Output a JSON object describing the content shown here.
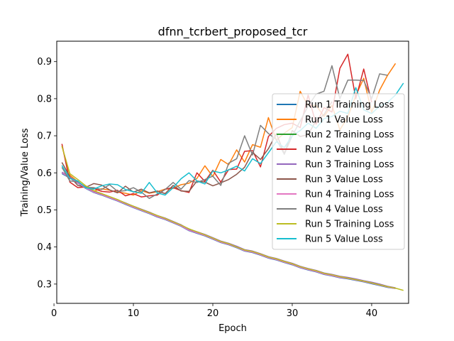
{
  "chart_data": {
    "type": "line",
    "title": "dfnn_tcrbert_proposed_tcr",
    "xlabel": "Epoch",
    "ylabel": "Training/Value Loss",
    "xlim": [
      0.35,
      44.65
    ],
    "ylim": [
      0.248,
      0.955
    ],
    "xticks": [
      0,
      10,
      20,
      30,
      40
    ],
    "yticks": [
      0.3,
      0.4,
      0.5,
      0.6,
      0.7,
      0.8,
      0.9
    ],
    "grid": false,
    "legend": "center-right",
    "series": [
      {
        "name": "Run 1 Training Loss",
        "color": "#1f77b4",
        "x": [
          1,
          2,
          3,
          4,
          5,
          6,
          7,
          8,
          9,
          10,
          11,
          12,
          13,
          14,
          15,
          16,
          17,
          18,
          19,
          20,
          21,
          22,
          23,
          24,
          25,
          26,
          27,
          28,
          29,
          30,
          31,
          32,
          33,
          34,
          35,
          36,
          37,
          38,
          39,
          40,
          41,
          42,
          43
        ],
        "y": [
          0.598,
          0.586,
          0.572,
          0.558,
          0.547,
          0.54,
          0.532,
          0.524,
          0.515,
          0.506,
          0.498,
          0.49,
          0.481,
          0.474,
          0.465,
          0.456,
          0.444,
          0.437,
          0.43,
          0.421,
          0.412,
          0.406,
          0.398,
          0.389,
          0.385,
          0.378,
          0.37,
          0.365,
          0.358,
          0.352,
          0.344,
          0.338,
          0.333,
          0.326,
          0.322,
          0.317,
          0.314,
          0.31,
          0.306,
          0.301,
          0.296,
          0.291,
          0.288
        ]
      },
      {
        "name": "Run 1 Value Loss",
        "color": "#ff7f0e",
        "x": [
          1,
          2,
          3,
          4,
          5,
          6,
          7,
          8,
          9,
          10,
          11,
          12,
          13,
          14,
          15,
          16,
          17,
          18,
          19,
          20,
          21,
          22,
          23,
          24,
          25,
          26,
          27,
          28,
          29,
          30,
          31,
          32,
          33,
          34,
          35,
          36,
          37,
          38,
          39,
          40,
          41,
          42,
          43
        ],
        "y": [
          0.672,
          0.594,
          0.576,
          0.562,
          0.551,
          0.557,
          0.553,
          0.548,
          0.545,
          0.54,
          0.552,
          0.545,
          0.549,
          0.556,
          0.558,
          0.568,
          0.572,
          0.585,
          0.619,
          0.59,
          0.636,
          0.622,
          0.662,
          0.629,
          0.676,
          0.669,
          0.749,
          0.688,
          0.707,
          0.722,
          0.82,
          0.781,
          0.782,
          0.752,
          0.782,
          0.716,
          0.751,
          0.808,
          0.855,
          0.763,
          0.823,
          0.863,
          0.895
        ]
      },
      {
        "name": "Run 2 Training Loss",
        "color": "#2ca02c",
        "x": [
          1,
          2,
          3,
          4,
          5,
          6,
          7,
          8,
          9,
          10,
          11,
          12,
          13,
          14,
          15,
          16,
          17,
          18,
          19,
          20,
          21,
          22,
          23,
          24,
          25,
          26,
          27,
          28,
          29,
          30,
          31,
          32,
          33,
          34,
          35,
          36,
          37,
          38,
          39,
          40,
          41,
          42,
          43
        ],
        "y": [
          0.601,
          0.588,
          0.574,
          0.56,
          0.549,
          0.542,
          0.534,
          0.526,
          0.517,
          0.508,
          0.5,
          0.492,
          0.483,
          0.476,
          0.467,
          0.458,
          0.446,
          0.439,
          0.432,
          0.423,
          0.414,
          0.408,
          0.4,
          0.391,
          0.387,
          0.38,
          0.372,
          0.367,
          0.36,
          0.354,
          0.346,
          0.34,
          0.335,
          0.328,
          0.324,
          0.319,
          0.316,
          0.312,
          0.308,
          0.303,
          0.298,
          0.293,
          0.289
        ]
      },
      {
        "name": "Run 2 Value Loss",
        "color": "#d62728",
        "x": [
          1,
          2,
          3,
          4,
          5,
          6,
          7,
          8,
          9,
          10,
          11,
          12,
          13,
          14,
          15,
          16,
          17,
          18,
          19,
          20,
          21,
          22,
          23,
          24,
          25,
          26,
          27,
          28,
          29,
          30,
          31,
          32,
          33,
          34,
          35,
          36,
          37,
          38,
          39,
          40
        ],
        "y": [
          0.678,
          0.575,
          0.56,
          0.562,
          0.558,
          0.55,
          0.548,
          0.553,
          0.538,
          0.544,
          0.535,
          0.538,
          0.54,
          0.556,
          0.56,
          0.552,
          0.547,
          0.6,
          0.577,
          0.607,
          0.575,
          0.609,
          0.61,
          0.658,
          0.66,
          0.616,
          0.698,
          0.72,
          0.73,
          0.734,
          0.722,
          0.81,
          0.731,
          0.776,
          0.764,
          0.882,
          0.92,
          0.8,
          0.88,
          0.79
        ]
      },
      {
        "name": "Run 3 Training Loss",
        "color": "#9467bd",
        "x": [
          1,
          2,
          3,
          4,
          5,
          6,
          7,
          8,
          9,
          10,
          11,
          12,
          13,
          14,
          15,
          16,
          17,
          18,
          19,
          20,
          21,
          22,
          23,
          24,
          25,
          26,
          27,
          28,
          29,
          30,
          31,
          32,
          33,
          34,
          35,
          36,
          37,
          38,
          39,
          40,
          41,
          42,
          43
        ],
        "y": [
          0.602,
          0.589,
          0.575,
          0.561,
          0.551,
          0.544,
          0.535,
          0.527,
          0.519,
          0.51,
          0.502,
          0.494,
          0.485,
          0.478,
          0.469,
          0.46,
          0.448,
          0.441,
          0.434,
          0.425,
          0.416,
          0.41,
          0.402,
          0.393,
          0.389,
          0.382,
          0.374,
          0.369,
          0.362,
          0.356,
          0.348,
          0.342,
          0.337,
          0.33,
          0.326,
          0.321,
          0.318,
          0.314,
          0.309,
          0.305,
          0.3,
          0.294,
          0.29
        ]
      },
      {
        "name": "Run 3 Value Loss",
        "color": "#8c564b",
        "x": [
          1,
          2,
          3,
          4,
          5,
          6,
          7,
          8,
          9,
          10,
          11,
          12,
          13,
          14,
          15,
          16,
          17,
          18,
          19,
          20,
          21,
          22,
          23,
          24,
          25,
          26,
          27,
          28,
          29,
          30,
          31,
          32,
          33,
          34,
          35
        ],
        "y": [
          0.628,
          0.59,
          0.566,
          0.561,
          0.571,
          0.567,
          0.554,
          0.546,
          0.564,
          0.548,
          0.556,
          0.546,
          0.551,
          0.544,
          0.566,
          0.551,
          0.55,
          0.578,
          0.575,
          0.565,
          0.573,
          0.582,
          0.596,
          0.615,
          0.655,
          0.636,
          0.665,
          0.706,
          0.651,
          0.714,
          0.698,
          0.703,
          0.741,
          0.757,
          0.792
        ]
      },
      {
        "name": "Run 4 Training Loss",
        "color": "#e377c2",
        "x": [
          1,
          2,
          3,
          4,
          5,
          6,
          7,
          8,
          9,
          10,
          11,
          12,
          13,
          14,
          15,
          16,
          17,
          18,
          19,
          20,
          21,
          22,
          23,
          24,
          25,
          26,
          27,
          28,
          29,
          30,
          31,
          32,
          33,
          34,
          35,
          36,
          37,
          38,
          39,
          40,
          41,
          42,
          43
        ],
        "y": [
          0.6,
          0.587,
          0.573,
          0.559,
          0.548,
          0.541,
          0.533,
          0.525,
          0.516,
          0.507,
          0.499,
          0.491,
          0.482,
          0.475,
          0.466,
          0.457,
          0.445,
          0.438,
          0.431,
          0.422,
          0.413,
          0.407,
          0.399,
          0.39,
          0.386,
          0.379,
          0.371,
          0.366,
          0.359,
          0.353,
          0.345,
          0.339,
          0.334,
          0.327,
          0.323,
          0.318,
          0.315,
          0.311,
          0.307,
          0.302,
          0.297,
          0.292,
          0.288
        ]
      },
      {
        "name": "Run 4 Value Loss",
        "color": "#7f7f7f",
        "x": [
          1,
          2,
          3,
          4,
          5,
          6,
          7,
          8,
          9,
          10,
          11,
          12,
          13,
          14,
          15,
          16,
          17,
          18,
          19,
          20,
          21,
          22,
          23,
          24,
          25,
          26,
          27,
          28,
          29,
          30,
          31,
          32,
          33,
          34,
          35,
          36,
          37,
          38,
          39,
          40,
          41,
          42
        ],
        "y": [
          0.615,
          0.578,
          0.576,
          0.561,
          0.56,
          0.555,
          0.568,
          0.55,
          0.552,
          0.56,
          0.548,
          0.531,
          0.543,
          0.555,
          0.574,
          0.556,
          0.579,
          0.574,
          0.582,
          0.591,
          0.566,
          0.626,
          0.638,
          0.7,
          0.648,
          0.728,
          0.706,
          0.69,
          0.65,
          0.7,
          0.74,
          0.78,
          0.812,
          0.82,
          0.889,
          0.8,
          0.85,
          0.85,
          0.849,
          0.8,
          0.867,
          0.863
        ]
      },
      {
        "name": "Run 5 Training Loss",
        "color": "#bcbd22",
        "x": [
          1,
          2,
          3,
          4,
          5,
          6,
          7,
          8,
          9,
          10,
          11,
          12,
          13,
          14,
          15,
          16,
          17,
          18,
          19,
          20,
          21,
          22,
          23,
          24,
          25,
          26,
          27,
          28,
          29,
          30,
          31,
          32,
          33,
          34,
          35,
          36,
          37,
          38,
          39,
          40,
          41,
          42,
          43,
          44
        ],
        "y": [
          0.672,
          0.598,
          0.582,
          0.565,
          0.552,
          0.544,
          0.536,
          0.528,
          0.518,
          0.51,
          0.501,
          0.493,
          0.485,
          0.477,
          0.468,
          0.459,
          0.449,
          0.441,
          0.433,
          0.424,
          0.415,
          0.409,
          0.4,
          0.392,
          0.388,
          0.381,
          0.373,
          0.368,
          0.361,
          0.355,
          0.347,
          0.341,
          0.336,
          0.329,
          0.325,
          0.32,
          0.316,
          0.312,
          0.308,
          0.303,
          0.298,
          0.293,
          0.289,
          0.283
        ]
      },
      {
        "name": "Run 5 Value Loss",
        "color": "#17becf",
        "x": [
          1,
          2,
          3,
          4,
          5,
          6,
          7,
          8,
          9,
          10,
          11,
          12,
          13,
          14,
          15,
          16,
          17,
          18,
          19,
          20,
          21,
          22,
          23,
          24,
          25,
          26,
          27,
          28,
          29,
          30,
          31,
          32,
          33,
          34,
          35,
          36,
          37,
          38,
          39,
          40,
          41,
          42,
          43,
          44
        ],
        "y": [
          0.62,
          0.585,
          0.578,
          0.56,
          0.556,
          0.565,
          0.57,
          0.568,
          0.555,
          0.549,
          0.545,
          0.574,
          0.546,
          0.54,
          0.56,
          0.584,
          0.6,
          0.578,
          0.57,
          0.605,
          0.6,
          0.608,
          0.618,
          0.605,
          0.638,
          0.625,
          0.654,
          0.684,
          0.668,
          0.7,
          0.714,
          0.734,
          0.72,
          0.746,
          0.752,
          0.766,
          0.76,
          0.83,
          0.77,
          0.76,
          0.78,
          0.79,
          0.81,
          0.842
        ]
      }
    ]
  }
}
